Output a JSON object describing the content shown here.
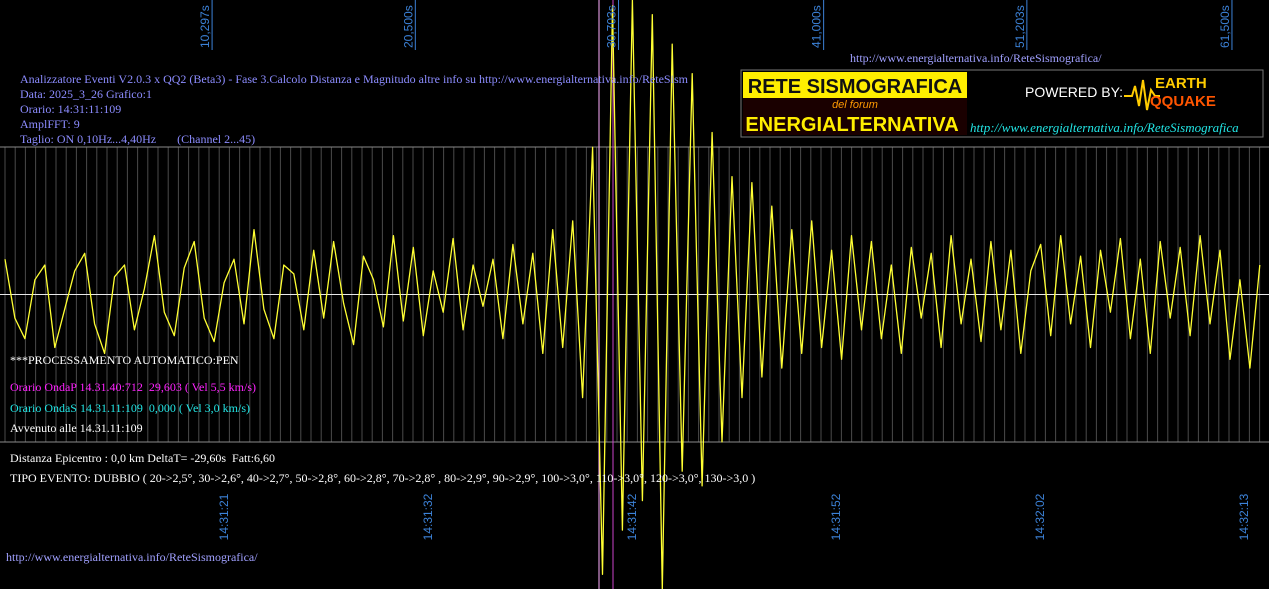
{
  "chart_data": {
    "type": "line",
    "color": "#ffff33",
    "xlim": [
      -0.25,
      63.46
    ],
    "ylim": [
      -1,
      1
    ],
    "xticks": [
      {
        "value": 10.297,
        "label": "10,297s"
      },
      {
        "value": 20.5,
        "label": "20,500s"
      },
      {
        "value": 30.703,
        "label": "30,703s"
      },
      {
        "value": 41.0,
        "label": "41,000s"
      },
      {
        "value": 51.203,
        "label": "51,203s"
      },
      {
        "value": 61.5,
        "label": "61,500s"
      }
    ],
    "xticks_time": [
      {
        "value": 11.0,
        "label": "14:31:21"
      },
      {
        "value": 21.24,
        "label": "14:31:32"
      },
      {
        "value": 31.48,
        "label": "14:31:42"
      },
      {
        "value": 41.72,
        "label": "14:31:52"
      },
      {
        "value": 51.96,
        "label": "14:32:02"
      },
      {
        "value": 62.2,
        "label": "14:32:13"
      }
    ],
    "x": [
      0,
      0.5,
      1,
      1.5,
      2,
      2.5,
      3,
      3.5,
      4,
      4.5,
      5,
      5.5,
      6,
      6.5,
      7,
      7.5,
      8,
      8.5,
      9,
      9.5,
      10,
      10.5,
      11,
      11.5,
      12,
      12.5,
      13,
      13.5,
      14,
      14.5,
      15,
      15.5,
      16,
      16.5,
      17,
      17.5,
      18,
      18.5,
      19,
      19.5,
      20,
      20.5,
      21,
      21.5,
      22,
      22.5,
      23,
      23.5,
      24,
      24.5,
      25,
      25.5,
      26,
      26.5,
      27,
      27.5,
      28,
      28.5,
      29,
      29.5,
      30,
      30.5,
      31,
      31.5,
      32,
      32.5,
      33,
      33.5,
      34,
      34.5,
      35,
      35.5,
      36,
      36.5,
      37,
      37.5,
      38,
      38.5,
      39,
      39.5,
      40,
      40.5,
      41,
      41.5,
      42,
      42.5,
      43,
      43.5,
      44,
      44.5,
      45,
      45.5,
      46,
      46.5,
      47,
      47.5,
      48,
      48.5,
      49,
      49.5,
      50,
      50.5,
      51,
      51.5,
      52,
      52.5,
      53,
      53.5,
      54,
      54.5,
      55,
      55.5,
      56,
      56.5,
      57,
      57.5,
      58,
      58.5,
      59,
      59.5,
      60,
      60.5,
      61,
      61.5,
      62,
      62.5,
      63
    ],
    "values": [
      0.12,
      -0.08,
      -0.15,
      0.05,
      0.1,
      -0.18,
      -0.05,
      0.08,
      0.14,
      -0.1,
      -0.2,
      0.06,
      0.1,
      -0.12,
      0.02,
      0.2,
      -0.06,
      -0.14,
      0.09,
      0.18,
      -0.08,
      -0.16,
      0.04,
      0.12,
      -0.1,
      0.22,
      -0.05,
      -0.15,
      0.1,
      0.07,
      -0.12,
      0.15,
      -0.08,
      0.18,
      -0.03,
      -0.17,
      0.13,
      0.05,
      -0.11,
      0.2,
      -0.09,
      0.16,
      -0.14,
      0.08,
      -0.06,
      0.19,
      -0.12,
      0.1,
      -0.04,
      0.12,
      -0.15,
      0.17,
      -0.1,
      0.14,
      -0.2,
      0.22,
      -0.18,
      0.25,
      -0.35,
      0.5,
      -0.95,
      0.98,
      -0.8,
      1.0,
      -0.7,
      0.95,
      -1.0,
      0.85,
      -0.6,
      0.75,
      -0.65,
      0.55,
      -0.5,
      0.4,
      -0.35,
      0.38,
      -0.28,
      0.3,
      -0.25,
      0.22,
      -0.2,
      0.25,
      -0.18,
      0.15,
      -0.22,
      0.2,
      -0.12,
      0.18,
      -0.15,
      0.1,
      -0.2,
      0.16,
      -0.08,
      0.14,
      -0.18,
      0.2,
      -0.1,
      0.12,
      -0.16,
      0.18,
      -0.12,
      0.15,
      -0.2,
      0.08,
      0.17,
      -0.14,
      0.2,
      -0.1,
      0.13,
      -0.18,
      0.15,
      -0.06,
      0.19,
      -0.15,
      0.12,
      -0.2,
      0.18,
      -0.08,
      0.16,
      -0.14,
      0.2,
      -0.1,
      0.15,
      -0.22,
      0.05,
      -0.25,
      0.1
    ],
    "header_url": "http://www.energialternativa.info/ReteSismografica/",
    "info_lines": [
      "Analizzatore Eventi V2.0.3 x QQ2 (Beta3) - Fase 3.Calcolo Distanza e Magnitudo altre info su http://www.energialternativa.info/ReteSism",
      "Data: 2025_3_26 Grafico:1",
      "Orario: 14:31:11:109",
      "AmplFFT: 9",
      "Taglio: ON 0,10Hz...4,40Hz       (Channel 2...45)"
    ],
    "processing": "***PROCESSAMENTO AUTOMATICO:PEN",
    "onda_p": "Orario OndaP 14.31.40:712  29,603 ( Vel 5,5 km/s)",
    "onda_s": "Orario OndaS 14.31.11:109  0,000 ( Vel 3,0 km/s)",
    "avvenuto": "Avvenuto alle 14.31.11:109",
    "distanza": "Distanza Epicentro : 0,0 km DeltaT= -29,60s  Fatt:6,60",
    "tipo_evento": "TIPO EVENTO: DUBBIO ( 20->2,5°, 30->2,6°, 40->2,7°, 50->2,8°, 60->2,8°, 70->2,8° , 80->2,9°, 90->2,9°, 100->3,0°, 110->3,0°, 120->3,0°, 130->3,0 )",
    "logo": {
      "title": "RETE SISMOGRAFICA",
      "subtitle": "del forum",
      "name": "ENERGIALTERNATIVA",
      "powered": "POWERED BY:",
      "earth": "EARTH",
      "quake": "QQUAKE",
      "url": "http://www.energialternativa.info/ReteSismografica"
    },
    "footer_url": "http://www.energialternativa.info/ReteSismografica/"
  }
}
